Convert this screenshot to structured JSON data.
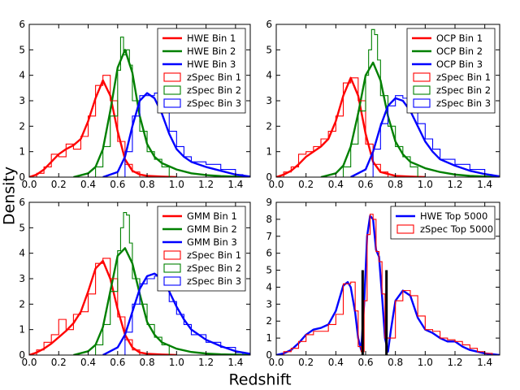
{
  "figure": {
    "ylabel": "Density",
    "xlabel": "Redshift"
  },
  "chart_data": [
    {
      "type": "line",
      "panel": "top-left",
      "xlim": [
        0.0,
        1.5
      ],
      "ylim": [
        0,
        6
      ],
      "xticks": [
        "0.0",
        "0.2",
        "0.4",
        "0.6",
        "0.8",
        "1.0",
        "1.2",
        "1.4"
      ],
      "yticks": [
        "0",
        "1",
        "2",
        "3",
        "4",
        "5",
        "6"
      ],
      "legend_position": "top-right",
      "series": [
        {
          "name": "HWE Bin 1",
          "style": "line",
          "color": "#ff0000",
          "x": [
            0.0,
            0.05,
            0.1,
            0.15,
            0.2,
            0.25,
            0.3,
            0.35,
            0.4,
            0.45,
            0.5,
            0.55,
            0.6,
            0.65,
            0.7,
            0.75,
            0.8,
            0.9,
            1.0
          ],
          "y": [
            0.0,
            0.1,
            0.3,
            0.6,
            0.9,
            1.1,
            1.25,
            1.5,
            2.2,
            3.1,
            3.8,
            3.2,
            1.8,
            0.7,
            0.25,
            0.1,
            0.05,
            0.02,
            0.0
          ]
        },
        {
          "name": "HWE Bin 2",
          "style": "line",
          "color": "#008000",
          "x": [
            0.3,
            0.4,
            0.45,
            0.5,
            0.55,
            0.6,
            0.65,
            0.7,
            0.75,
            0.8,
            0.85,
            0.9,
            1.0,
            1.1,
            1.2,
            1.3,
            1.5
          ],
          "y": [
            0.0,
            0.15,
            0.4,
            1.1,
            2.6,
            4.3,
            5.0,
            4.1,
            2.4,
            1.3,
            0.8,
            0.55,
            0.3,
            0.15,
            0.08,
            0.04,
            0.0
          ]
        },
        {
          "name": "HWE Bin 3",
          "style": "line",
          "color": "#0000ff",
          "x": [
            0.5,
            0.6,
            0.65,
            0.7,
            0.75,
            0.8,
            0.85,
            0.9,
            0.95,
            1.0,
            1.05,
            1.1,
            1.2,
            1.3,
            1.4,
            1.5
          ],
          "y": [
            0.0,
            0.2,
            0.8,
            2.0,
            3.0,
            3.3,
            3.1,
            2.5,
            1.7,
            1.1,
            0.8,
            0.6,
            0.4,
            0.25,
            0.1,
            0.02
          ]
        },
        {
          "name": "zSpec Bin 1",
          "style": "step",
          "color": "#ff0000",
          "x": [
            0.05,
            0.1,
            0.15,
            0.2,
            0.25,
            0.3,
            0.35,
            0.4,
            0.45,
            0.5,
            0.55,
            0.6,
            0.65,
            0.7
          ],
          "y": [
            0.15,
            0.4,
            0.9,
            0.8,
            1.3,
            1.1,
            1.6,
            2.4,
            3.6,
            4.0,
            3.0,
            1.4,
            0.5,
            0.2
          ]
        },
        {
          "name": "zSpec Bin 2",
          "style": "step",
          "color": "#008000",
          "x": [
            0.45,
            0.5,
            0.55,
            0.6,
            0.62,
            0.64,
            0.66,
            0.68,
            0.7,
            0.75,
            0.8,
            0.85,
            0.9
          ],
          "y": [
            0.4,
            1.2,
            2.4,
            4.2,
            5.5,
            4.8,
            5.0,
            4.4,
            3.0,
            1.8,
            1.0,
            0.7,
            0.4
          ]
        },
        {
          "name": "zSpec Bin 3",
          "style": "step",
          "color": "#0000ff",
          "x": [
            0.65,
            0.7,
            0.75,
            0.8,
            0.85,
            0.9,
            0.95,
            1.0,
            1.05,
            1.1,
            1.2,
            1.3,
            1.4
          ],
          "y": [
            1.0,
            2.4,
            3.2,
            3.2,
            3.3,
            2.8,
            1.8,
            1.2,
            0.8,
            0.6,
            0.5,
            0.3,
            0.1
          ]
        }
      ]
    },
    {
      "type": "line",
      "panel": "top-right",
      "xlim": [
        0.0,
        1.5
      ],
      "ylim": [
        0,
        6
      ],
      "xticks": [
        "0.0",
        "0.2",
        "0.4",
        "0.6",
        "0.8",
        "1.0",
        "1.2",
        "1.4"
      ],
      "yticks": [
        "0",
        "1",
        "2",
        "3",
        "4",
        "5",
        "6"
      ],
      "legend_position": "top-right",
      "series": [
        {
          "name": "OCP Bin 1",
          "style": "line",
          "color": "#ff0000",
          "x": [
            0.0,
            0.05,
            0.1,
            0.15,
            0.2,
            0.25,
            0.3,
            0.35,
            0.4,
            0.45,
            0.5,
            0.55,
            0.6,
            0.65,
            0.7,
            0.8,
            0.9,
            1.0
          ],
          "y": [
            0.0,
            0.1,
            0.25,
            0.5,
            0.8,
            1.0,
            1.2,
            1.5,
            2.2,
            3.2,
            3.9,
            3.2,
            1.7,
            0.6,
            0.2,
            0.05,
            0.02,
            0.0
          ]
        },
        {
          "name": "OCP Bin 2",
          "style": "line",
          "color": "#008000",
          "x": [
            0.3,
            0.4,
            0.45,
            0.5,
            0.55,
            0.6,
            0.65,
            0.7,
            0.75,
            0.8,
            0.85,
            0.9,
            1.0,
            1.1,
            1.2,
            1.3,
            1.5
          ],
          "y": [
            0.0,
            0.15,
            0.45,
            1.2,
            2.5,
            4.0,
            4.5,
            3.8,
            2.4,
            1.4,
            0.9,
            0.6,
            0.35,
            0.2,
            0.1,
            0.05,
            0.0
          ]
        },
        {
          "name": "OCP Bin 3",
          "style": "line",
          "color": "#0000ff",
          "x": [
            0.5,
            0.6,
            0.65,
            0.7,
            0.75,
            0.8,
            0.85,
            0.9,
            0.95,
            1.0,
            1.05,
            1.1,
            1.2,
            1.3,
            1.4,
            1.5
          ],
          "y": [
            0.0,
            0.3,
            1.0,
            2.0,
            2.8,
            3.1,
            3.0,
            2.6,
            2.0,
            1.4,
            1.0,
            0.7,
            0.45,
            0.25,
            0.12,
            0.03
          ]
        },
        {
          "name": "zSpec Bin 1",
          "style": "step",
          "color": "#ff0000",
          "x": [
            0.05,
            0.1,
            0.15,
            0.2,
            0.25,
            0.3,
            0.35,
            0.4,
            0.45,
            0.5,
            0.55,
            0.6,
            0.65,
            0.7
          ],
          "y": [
            0.2,
            0.4,
            0.9,
            1.0,
            1.2,
            1.5,
            1.8,
            2.4,
            3.7,
            3.9,
            3.0,
            1.3,
            0.5,
            0.2
          ]
        },
        {
          "name": "zSpec Bin 2",
          "style": "step",
          "color": "#008000",
          "x": [
            0.45,
            0.5,
            0.55,
            0.6,
            0.62,
            0.64,
            0.66,
            0.68,
            0.7,
            0.75,
            0.8,
            0.85,
            0.9
          ],
          "y": [
            0.4,
            1.3,
            2.6,
            4.0,
            5.0,
            5.8,
            5.6,
            4.6,
            3.2,
            2.0,
            1.2,
            0.8,
            0.4
          ]
        },
        {
          "name": "zSpec Bin 3",
          "style": "step",
          "color": "#0000ff",
          "x": [
            0.65,
            0.7,
            0.75,
            0.8,
            0.85,
            0.9,
            0.95,
            1.0,
            1.05,
            1.1,
            1.2,
            1.3,
            1.4
          ],
          "y": [
            1.1,
            2.1,
            2.8,
            3.2,
            3.1,
            2.9,
            2.1,
            1.5,
            1.1,
            0.7,
            0.5,
            0.3,
            0.1
          ]
        }
      ]
    },
    {
      "type": "line",
      "panel": "bottom-left",
      "xlim": [
        0.0,
        1.5
      ],
      "ylim": [
        0,
        6
      ],
      "xticks": [
        "0.0",
        "0.2",
        "0.4",
        "0.6",
        "0.8",
        "1.0",
        "1.2",
        "1.4"
      ],
      "yticks": [
        "0",
        "1",
        "2",
        "3",
        "4",
        "5",
        "6"
      ],
      "legend_position": "top-right",
      "series": [
        {
          "name": "GMM Bin 1",
          "style": "line",
          "color": "#ff0000",
          "x": [
            0.0,
            0.05,
            0.1,
            0.15,
            0.2,
            0.25,
            0.3,
            0.35,
            0.4,
            0.45,
            0.5,
            0.55,
            0.6,
            0.65,
            0.7,
            0.75,
            0.8,
            0.9,
            1.0
          ],
          "y": [
            0.0,
            0.1,
            0.25,
            0.45,
            0.7,
            0.95,
            1.25,
            1.7,
            2.5,
            3.4,
            3.7,
            3.0,
            1.8,
            0.8,
            0.3,
            0.1,
            0.05,
            0.02,
            0.0
          ]
        },
        {
          "name": "GMM Bin 2",
          "style": "line",
          "color": "#008000",
          "x": [
            0.3,
            0.4,
            0.45,
            0.5,
            0.55,
            0.6,
            0.65,
            0.7,
            0.75,
            0.8,
            0.85,
            0.9,
            1.0,
            1.1,
            1.2,
            1.3,
            1.5
          ],
          "y": [
            0.0,
            0.15,
            0.4,
            1.1,
            2.5,
            3.9,
            4.2,
            3.6,
            2.4,
            1.3,
            0.8,
            0.5,
            0.25,
            0.12,
            0.06,
            0.03,
            0.0
          ]
        },
        {
          "name": "GMM Bin 3",
          "style": "line",
          "color": "#0000ff",
          "x": [
            0.5,
            0.6,
            0.65,
            0.7,
            0.75,
            0.8,
            0.85,
            0.9,
            0.95,
            1.0,
            1.05,
            1.1,
            1.2,
            1.3,
            1.4,
            1.5
          ],
          "y": [
            0.0,
            0.3,
            0.8,
            1.7,
            2.6,
            3.1,
            3.2,
            3.0,
            2.5,
            1.9,
            1.4,
            1.0,
            0.6,
            0.35,
            0.15,
            0.05
          ]
        },
        {
          "name": "zSpec Bin 1",
          "style": "step",
          "color": "#ff0000",
          "x": [
            0.05,
            0.1,
            0.15,
            0.2,
            0.25,
            0.3,
            0.35,
            0.4,
            0.45,
            0.5,
            0.55,
            0.6,
            0.65,
            0.7
          ],
          "y": [
            0.2,
            0.5,
            0.8,
            1.4,
            1.0,
            1.6,
            1.7,
            2.4,
            3.6,
            3.8,
            3.0,
            1.5,
            0.6,
            0.2
          ]
        },
        {
          "name": "zSpec Bin 2",
          "style": "step",
          "color": "#008000",
          "x": [
            0.45,
            0.5,
            0.55,
            0.6,
            0.62,
            0.64,
            0.66,
            0.68,
            0.7,
            0.75,
            0.8,
            0.85,
            0.9
          ],
          "y": [
            0.4,
            1.2,
            2.5,
            4.1,
            5.0,
            5.6,
            5.5,
            4.4,
            3.0,
            2.0,
            1.2,
            0.7,
            0.4
          ]
        },
        {
          "name": "zSpec Bin 3",
          "style": "step",
          "color": "#0000ff",
          "x": [
            0.65,
            0.7,
            0.75,
            0.8,
            0.85,
            0.9,
            0.95,
            1.0,
            1.05,
            1.1,
            1.2,
            1.3,
            1.4
          ],
          "y": [
            0.9,
            2.0,
            2.8,
            3.0,
            3.1,
            2.7,
            2.1,
            1.6,
            1.2,
            0.8,
            0.5,
            0.3,
            0.1
          ]
        }
      ]
    },
    {
      "type": "line",
      "panel": "bottom-right",
      "xlim": [
        0.0,
        1.5
      ],
      "ylim": [
        0,
        9
      ],
      "xticks": [
        "0.0",
        "0.2",
        "0.4",
        "0.6",
        "0.8",
        "1.0",
        "1.2",
        "1.4"
      ],
      "yticks": [
        "0",
        "1",
        "2",
        "3",
        "4",
        "5",
        "6",
        "7",
        "8",
        "9"
      ],
      "legend_position": "top-right",
      "series": [
        {
          "name": "HWE Top 5000",
          "style": "line",
          "color": "#0000ff",
          "x": [
            0.0,
            0.05,
            0.1,
            0.15,
            0.2,
            0.25,
            0.3,
            0.35,
            0.4,
            0.45,
            0.48,
            0.5,
            0.53,
            0.55,
            0.57,
            0.59,
            0.61,
            0.63,
            0.65,
            0.67,
            0.69,
            0.71,
            0.73,
            0.75,
            0.77,
            0.8,
            0.85,
            0.9,
            0.95,
            1.0,
            1.05,
            1.1,
            1.15,
            1.2,
            1.25,
            1.3,
            1.4,
            1.5
          ],
          "y": [
            0.0,
            0.1,
            0.3,
            0.7,
            1.2,
            1.5,
            1.6,
            1.8,
            2.6,
            4.1,
            4.3,
            4.0,
            2.5,
            1.0,
            0.3,
            3.0,
            7.0,
            8.2,
            8.0,
            6.2,
            5.8,
            3.5,
            1.0,
            0.2,
            1.5,
            3.2,
            3.8,
            3.5,
            2.2,
            1.5,
            1.3,
            1.0,
            0.8,
            0.8,
            0.5,
            0.3,
            0.1,
            0.0
          ]
        },
        {
          "name": "zSpec Top 5000",
          "style": "step",
          "color": "#ff0000",
          "x": [
            0.05,
            0.1,
            0.15,
            0.2,
            0.25,
            0.3,
            0.35,
            0.4,
            0.45,
            0.5,
            0.53,
            0.55,
            0.57,
            0.59,
            0.61,
            0.63,
            0.65,
            0.67,
            0.69,
            0.71,
            0.73,
            0.75,
            0.8,
            0.85,
            0.9,
            0.95,
            1.0,
            1.05,
            1.1,
            1.15,
            1.2,
            1.25,
            1.3,
            1.35,
            1.4
          ],
          "y": [
            0.2,
            0.4,
            0.8,
            1.2,
            1.4,
            1.4,
            1.8,
            2.4,
            4.2,
            4.3,
            2.6,
            0.5,
            0.2,
            3.2,
            7.1,
            8.3,
            8.0,
            6.1,
            5.5,
            3.6,
            1.0,
            1.0,
            3.2,
            3.8,
            3.5,
            2.3,
            1.5,
            1.4,
            1.0,
            0.9,
            0.8,
            0.6,
            0.4,
            0.2,
            0.1
          ]
        },
        {
          "name": "black-markers",
          "style": "vlines",
          "color": "#000000",
          "x": [
            0.58,
            0.74
          ],
          "y": [
            5.0,
            5.0
          ]
        }
      ]
    }
  ]
}
